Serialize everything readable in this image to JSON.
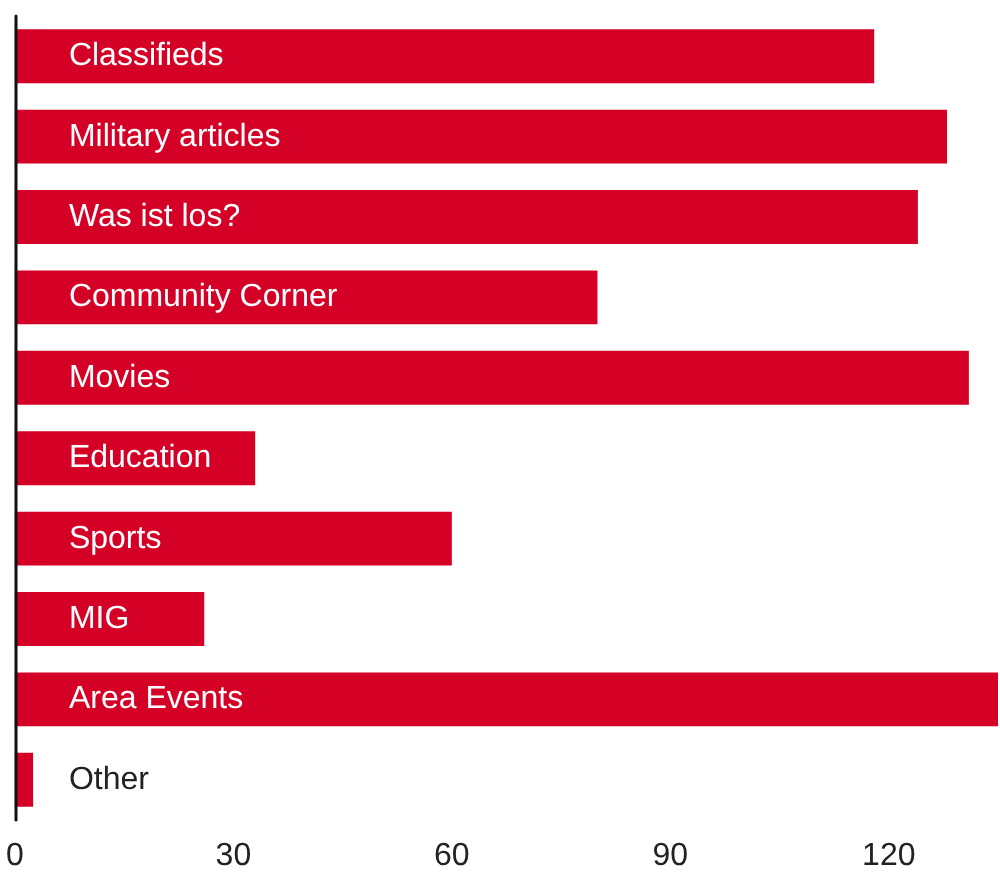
{
  "chart_data": {
    "type": "bar",
    "orientation": "horizontal",
    "categories": [
      "Classifieds",
      "Military articles",
      "Was ist los?",
      "Community Corner",
      "Movies",
      "Education",
      "Sports",
      "MIG",
      "Area Events",
      "Other"
    ],
    "values": [
      118,
      128,
      124,
      80,
      131,
      33,
      60,
      26,
      135,
      2.5
    ],
    "color": "#d50026",
    "xlim": [
      0,
      135
    ],
    "xticks": [
      0,
      30,
      60,
      90,
      120
    ],
    "grid": false
  }
}
